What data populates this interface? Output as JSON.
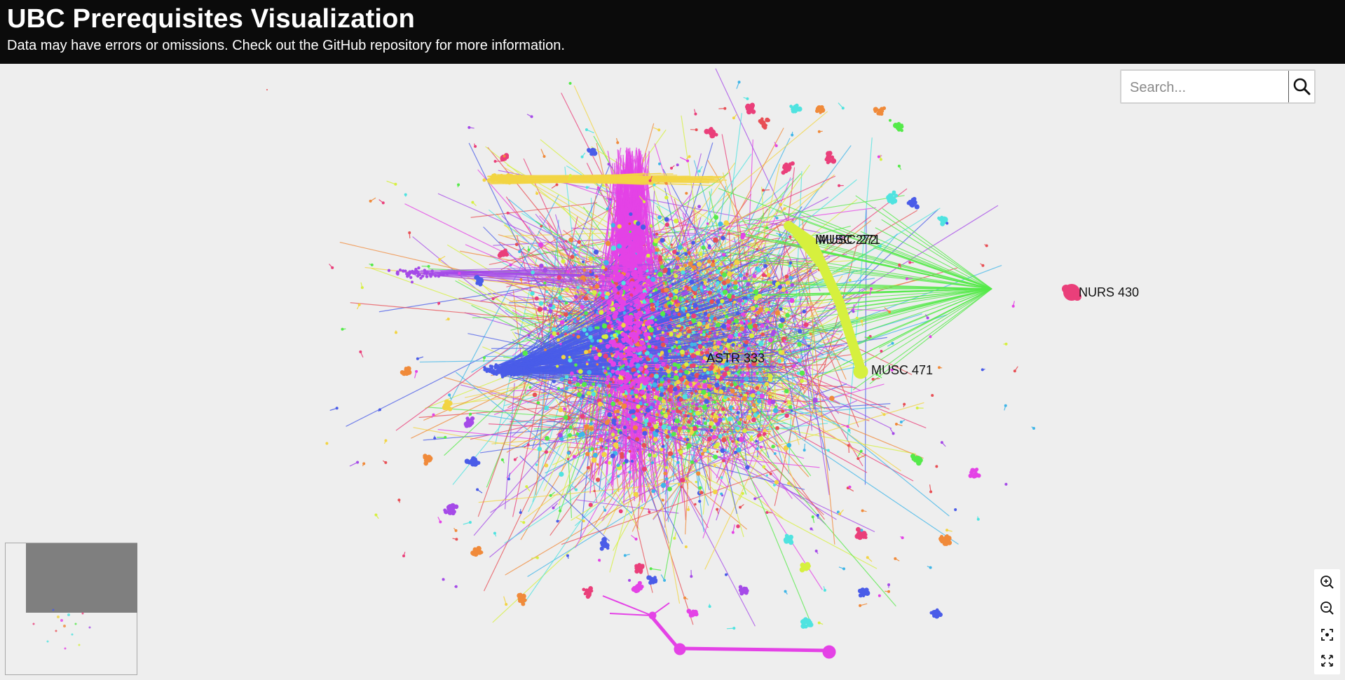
{
  "header": {
    "title": "UBC Prerequisites Visualization",
    "subtitle": "Data may have errors or omissions. Check out the GitHub repository for more information."
  },
  "search": {
    "placeholder": "Search...",
    "value": ""
  },
  "icons": {
    "search": "search-icon",
    "zoom_in": "zoom-in-icon",
    "zoom_out": "zoom-out-icon",
    "fit": "fit-view-icon",
    "fullscreen": "fullscreen-icon"
  },
  "graph": {
    "labels": {
      "musc_272": "MUSC 272",
      "musc_271": "MUSC 271",
      "nurs_430": "NURS 430",
      "astr_333": "ASTR 333",
      "musc_471": "MUSC 471"
    },
    "palette": [
      "#e442e6",
      "#f2d443",
      "#4a5ce8",
      "#55ea4a",
      "#4fe3e0",
      "#ea3f7a",
      "#e84f55",
      "#a54ae8",
      "#f08a3a",
      "#d6f03e",
      "#3fb6e8"
    ]
  }
}
